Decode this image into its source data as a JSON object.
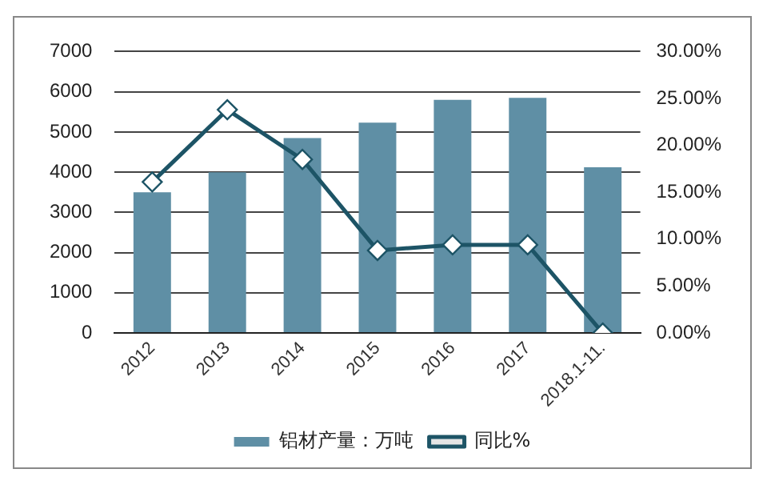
{
  "chart_data": {
    "type": "bar",
    "categories": [
      "2012",
      "2013",
      "2014",
      "2015",
      "2016",
      "2017",
      "2018.1-11."
    ],
    "series": [
      {
        "name": "铝材产量：万吨",
        "color": "#5f8fa5",
        "values": [
          3500,
          4000,
          4850,
          5230,
          5800,
          5850,
          4120
        ]
      },
      {
        "name": "同比%",
        "type": "line",
        "axis": "y2",
        "color": "#1d5466",
        "marker": "diamond",
        "values": [
          16.1,
          23.8,
          18.5,
          8.8,
          9.4,
          9.4,
          0
        ]
      }
    ],
    "ylim": [
      0,
      7000
    ],
    "yticks": [
      0,
      1000,
      2000,
      3000,
      4000,
      5000,
      6000,
      7000
    ],
    "y2lim": [
      0,
      30
    ],
    "y2ticks": [
      {
        "value": 0,
        "label": "0.00%"
      },
      {
        "value": 5,
        "label": "5.00%"
      },
      {
        "value": 10,
        "label": "10.00%"
      },
      {
        "value": 15,
        "label": "15.00%"
      },
      {
        "value": 20,
        "label": "20.00%"
      },
      {
        "value": 25,
        "label": "25.00%"
      },
      {
        "value": 30,
        "label": "30.00%"
      }
    ],
    "grid": "y",
    "legend": "bottom"
  }
}
